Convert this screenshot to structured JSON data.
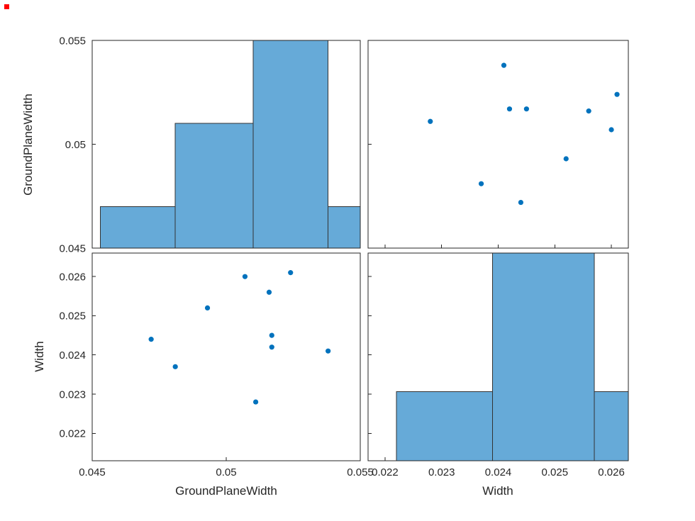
{
  "figure": {
    "background": "#ffffff",
    "axis_color": "#262626",
    "marker_color": "#0072BD",
    "hist_fill": "#66AAD8",
    "hist_edge": "#333333",
    "artifact_dot_color": "#FF0000"
  },
  "chart_data": [
    {
      "id": "hist-groundplanewidth",
      "type": "histogram",
      "position": "top-left",
      "variable": "GroundPlaneWidth",
      "ylabel": "GroundPlaneWidth",
      "xlim": [
        0.045,
        0.055
      ],
      "bin_edges": [
        0.0453,
        0.0481,
        0.051,
        0.0538,
        0.0566
      ],
      "counts": [
        1,
        3,
        5,
        1
      ],
      "count_max": 5,
      "xticks": [
        0.045,
        0.05,
        0.055
      ],
      "yticks": [
        0.045,
        0.05,
        0.055
      ],
      "ytick_lim": [
        0.045,
        0.055
      ],
      "ytick_labels": [
        "0.045",
        "0.05",
        "0.055"
      ],
      "grid": false
    },
    {
      "id": "scatter-width-vs-groundplanewidth",
      "type": "scatter",
      "position": "top-right",
      "x_variable": "Width",
      "y_variable": "GroundPlaneWidth",
      "xlim": [
        0.0217,
        0.0263
      ],
      "ylim": [
        0.045,
        0.055
      ],
      "xticks": [
        0.022,
        0.023,
        0.024,
        0.025,
        0.026
      ],
      "yticks": [
        0.045,
        0.05,
        0.055
      ],
      "x": [
        0.0244,
        0.0237,
        0.0252,
        0.026,
        0.0228,
        0.0256,
        0.0245,
        0.0242,
        0.0261,
        0.0241
      ],
      "y": [
        0.0472,
        0.0481,
        0.0493,
        0.0507,
        0.0511,
        0.0516,
        0.0517,
        0.0517,
        0.0524,
        0.0538
      ],
      "grid": false
    },
    {
      "id": "scatter-groundplanewidth-vs-width",
      "type": "scatter",
      "position": "bottom-left",
      "x_variable": "GroundPlaneWidth",
      "y_variable": "Width",
      "xlabel": "GroundPlaneWidth",
      "ylabel": "Width",
      "xlim": [
        0.045,
        0.055
      ],
      "ylim": [
        0.0213,
        0.0266
      ],
      "xticks": [
        0.045,
        0.05,
        0.055
      ],
      "xtick_labels": [
        "0.045",
        "0.05",
        "0.055"
      ],
      "yticks": [
        0.022,
        0.023,
        0.024,
        0.025,
        0.026
      ],
      "ytick_labels": [
        "0.022",
        "0.023",
        "0.024",
        "0.025",
        "0.026"
      ],
      "x": [
        0.0472,
        0.0481,
        0.0493,
        0.0507,
        0.0511,
        0.0516,
        0.0517,
        0.0517,
        0.0524,
        0.0538
      ],
      "y": [
        0.0244,
        0.0237,
        0.0252,
        0.026,
        0.0228,
        0.0256,
        0.0245,
        0.0242,
        0.0261,
        0.0241
      ],
      "grid": false
    },
    {
      "id": "hist-width",
      "type": "histogram",
      "position": "bottom-right",
      "variable": "Width",
      "xlabel": "Width",
      "xlim": [
        0.0217,
        0.0263
      ],
      "bin_edges": [
        0.0222,
        0.0239,
        0.0257,
        0.0274
      ],
      "counts": [
        2,
        6,
        2
      ],
      "count_max": 6,
      "xticks": [
        0.022,
        0.023,
        0.024,
        0.025,
        0.026
      ],
      "xtick_labels": [
        "0.022",
        "0.023",
        "0.024",
        "0.025",
        "0.026"
      ],
      "yticks": [
        0.022,
        0.023,
        0.024,
        0.025,
        0.026
      ],
      "ytick_lim": [
        0.0213,
        0.0266
      ],
      "grid": false
    }
  ],
  "points": {
    "GroundPlaneWidth": [
      0.0472,
      0.0481,
      0.0493,
      0.0507,
      0.0511,
      0.0516,
      0.0517,
      0.0517,
      0.0524,
      0.0538
    ],
    "Width": [
      0.0244,
      0.0237,
      0.0252,
      0.026,
      0.0228,
      0.0256,
      0.0245,
      0.0242,
      0.0261,
      0.0241
    ]
  }
}
